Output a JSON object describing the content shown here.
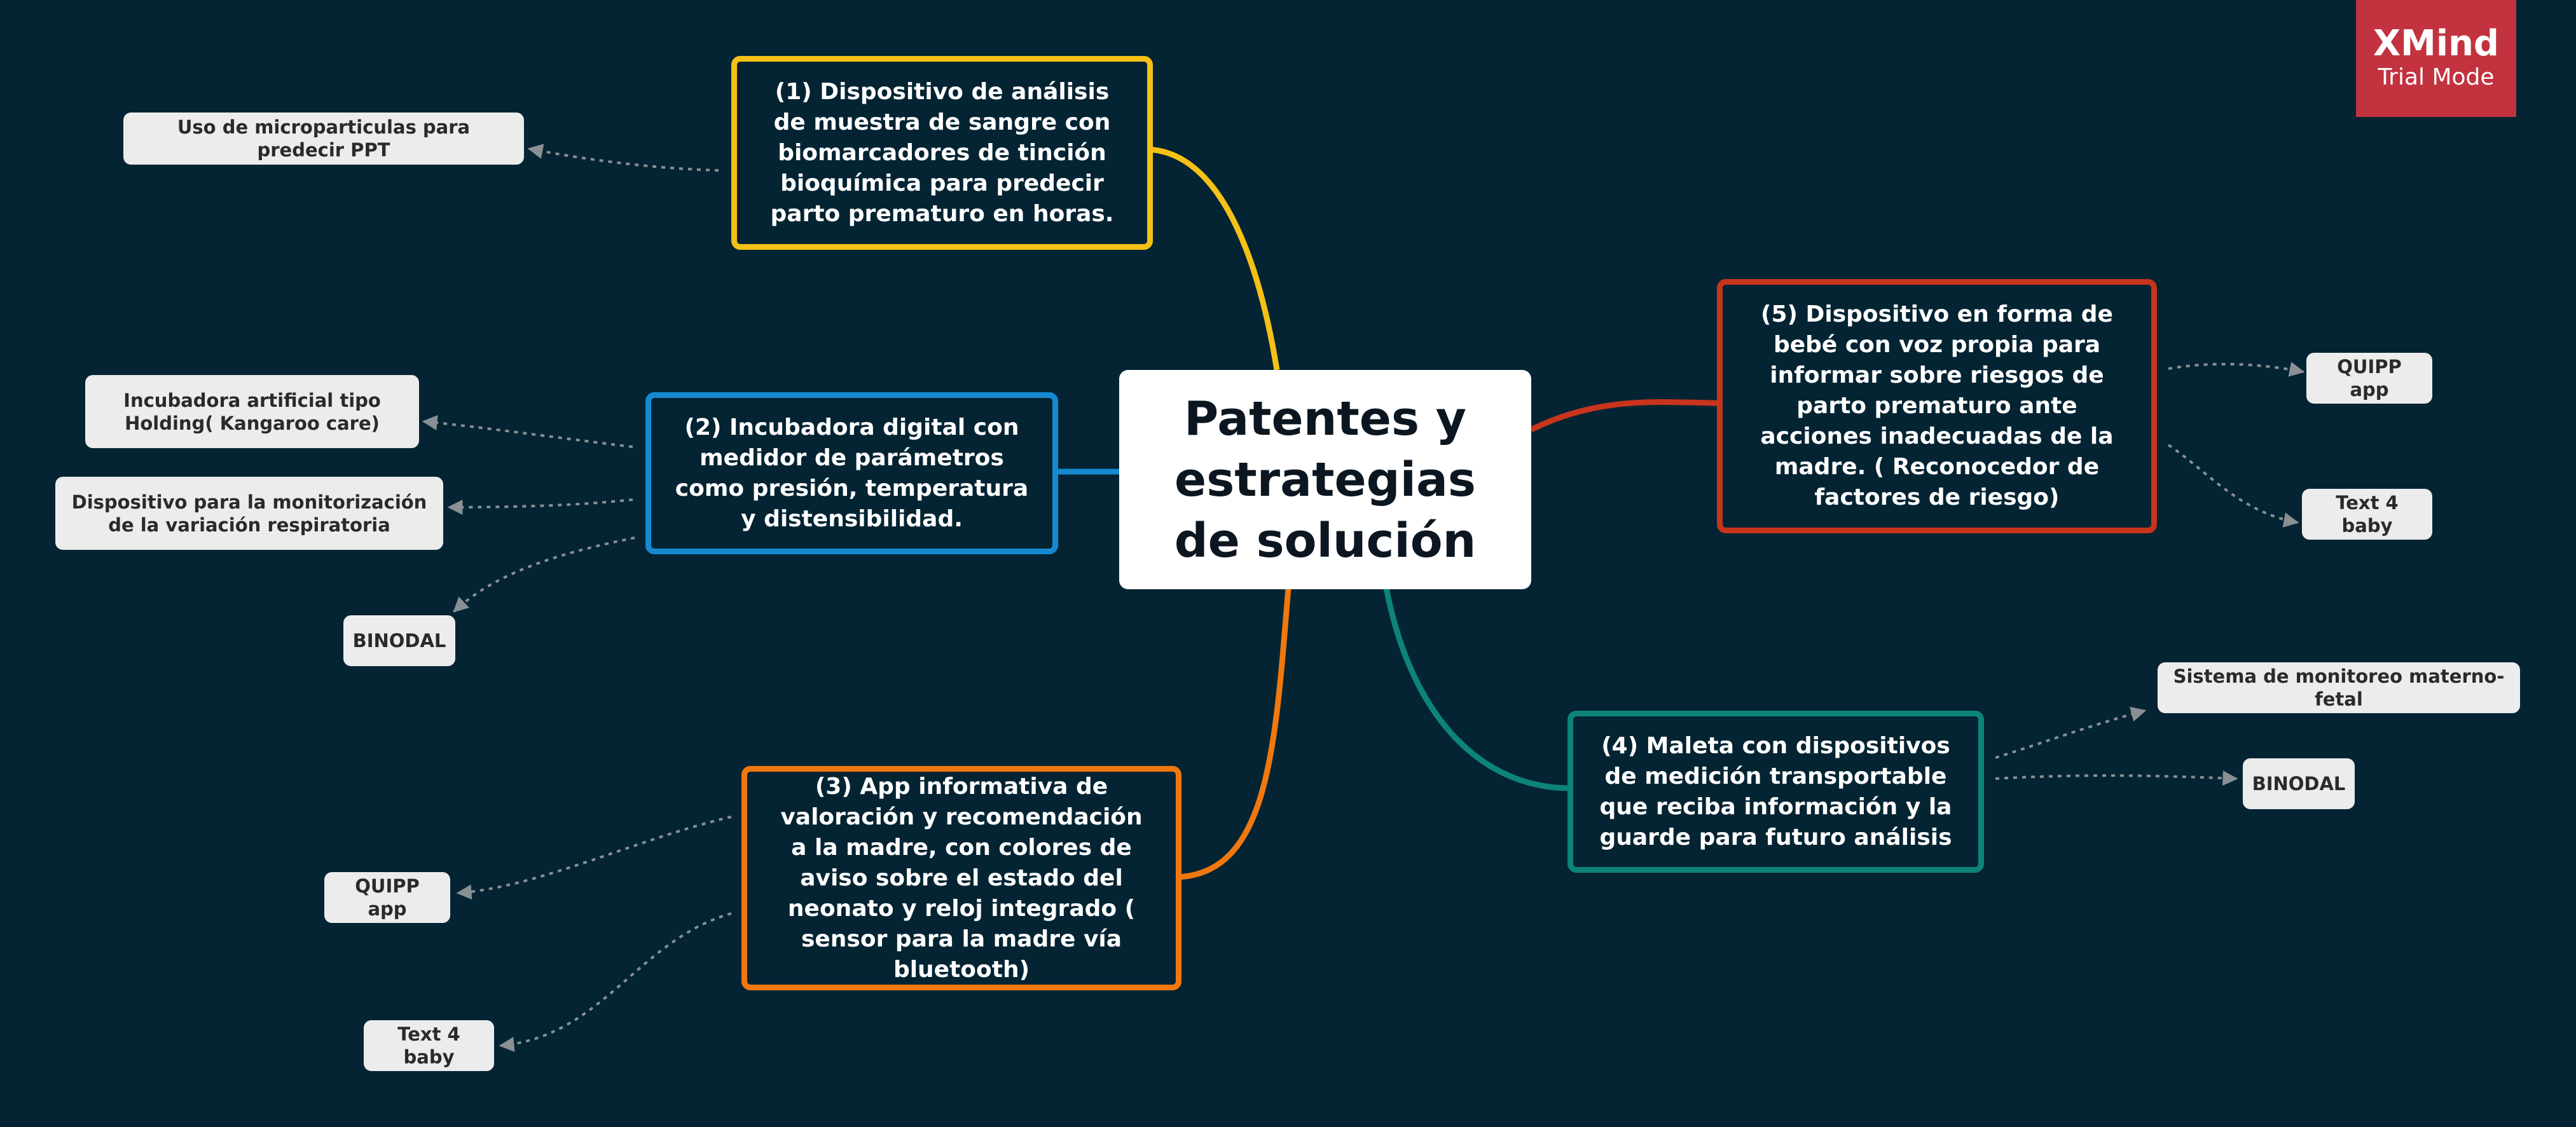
{
  "central_topic": "Patentes y estrategias de solución",
  "main_topics": [
    {
      "id": "t1",
      "text": "(1) Dispositivo de análisis de muestra de sangre con biomarcadores de tinción bioquímica para predecir parto prematuro en horas.",
      "color": "#f5c116"
    },
    {
      "id": "t2",
      "text": "(2) Incubadora digital con medidor de parámetros como presión, temperatura y distensibilidad.",
      "color": "#1689d1"
    },
    {
      "id": "t3",
      "text": "(3) App informativa de valoración y recomendación a la madre, con colores de aviso sobre el estado del neonato y reloj integrado ( sensor para la madre vía bluetooth)",
      "color": "#f0780f"
    },
    {
      "id": "t4",
      "text": "(4) Maleta con dispositivos de medición transportable que reciba información y la guarde para futuro análisis",
      "color": "#0e8478"
    },
    {
      "id": "t5",
      "text": "(5) Dispositivo en forma de bebé con voz propia para informar sobre riesgos de parto prematuro ante acciones inadecuadas de la madre. ( Reconocedor de factores de riesgo)",
      "color": "#c8341c"
    }
  ],
  "subtopics": {
    "t1": [
      "Uso de microparticulas para predecir PPT"
    ],
    "t2": [
      "Incubadora artificial tipo Holding( Kangaroo care)",
      "Dispositivo para la monitorización de la variación respiratoria",
      "BINODAL"
    ],
    "t3": [
      "QUIPP app",
      "Text 4 baby"
    ],
    "t4": [
      "Sistema de monitoreo materno- fetal",
      "BINODAL"
    ],
    "t5": [
      "QUIPP app",
      "Text 4 baby"
    ]
  },
  "watermark": {
    "title": "XMind",
    "subtitle": "Trial Mode",
    "color": "#c3323f"
  },
  "colors": {
    "background": "#042433",
    "central_fill": "#ffffff",
    "subtopic_fill": "#ececec",
    "dotted_connector": "#8a8f94"
  }
}
